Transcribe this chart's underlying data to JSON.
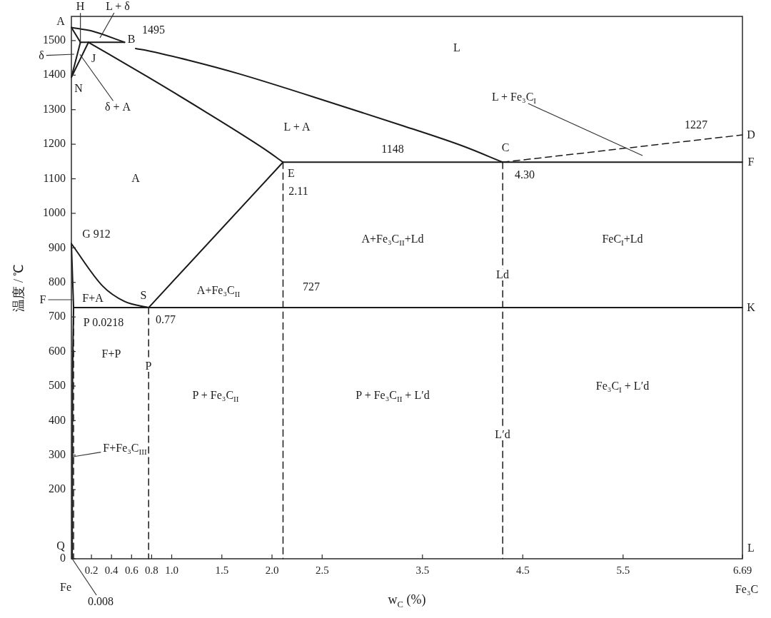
{
  "chart_data": {
    "type": "line",
    "xlabel": "w$_{C}$ (%)",
    "ylabel": "温度 / ℃",
    "xlim": [
      0,
      6.69
    ],
    "xticks": [
      0.2,
      0.4,
      0.6,
      0.8,
      {
        "value": 1,
        "label": "1.0"
      },
      1.5,
      {
        "value": 2,
        "label": "2.0"
      },
      2.5,
      3.5,
      4.5,
      5.5,
      6.69
    ],
    "ylim": [
      0,
      1570
    ],
    "yticks": [
      0,
      200,
      300,
      400,
      500,
      600,
      700,
      800,
      900,
      1000,
      1100,
      1200,
      1300,
      1400,
      1500
    ],
    "marker": "none",
    "line_style": "solid",
    "series": [
      {
        "color": "#1a1a1a",
        "x": [
          0,
          0.2,
          0.53
        ],
        "values": [
          1538,
          1528,
          1495
        ]
      },
      {
        "color": "#1a1a1a",
        "x": [
          0,
          0.09
        ],
        "values": [
          1538,
          1495
        ]
      },
      {
        "color": "#1a1a1a",
        "x": [
          0.09,
          0.53
        ],
        "values": [
          1495,
          1495
        ]
      },
      {
        "color": "#1a1a1a",
        "x": [
          0,
          0.09
        ],
        "values": [
          1394,
          1495
        ]
      },
      {
        "color": "#1a1a1a",
        "x": [
          0,
          0.17
        ],
        "values": [
          1394,
          1495
        ]
      },
      {
        "color": "#1a1a1a",
        "x": [
          0.17,
          0.76,
          1.33,
          1.93,
          2.11
        ],
        "values": [
          1495,
          1395,
          1295,
          1185,
          1148
        ]
      },
      {
        "color": "#1a1a1a",
        "x": [
          0.64,
          0.76,
          1.17,
          1.67,
          2.66,
          3.31,
          3.9,
          4.3
        ],
        "values": [
          1477,
          1471,
          1443,
          1404,
          1314,
          1253,
          1195,
          1148
        ]
      },
      {
        "color": "#1a1a1a",
        "line_style": "dashed",
        "x": [
          4.3,
          6.69
        ],
        "values": [
          1148,
          1227
        ]
      },
      {
        "color": "#1a1a1a",
        "x": [
          2.11,
          6.69
        ],
        "values": [
          1148,
          1148
        ]
      },
      {
        "color": "#1a1a1a",
        "x": [
          0,
          0.31,
          0.53,
          0.77
        ],
        "values": [
          912,
          790,
          745,
          727
        ]
      },
      {
        "color": "#1a1a1a",
        "x": [
          0.77,
          2.11
        ],
        "values": [
          727,
          1148
        ]
      },
      {
        "color": "#1a1a1a",
        "x": [
          0.0218,
          6.69
        ],
        "values": [
          727,
          727
        ]
      },
      {
        "color": "#1a1a1a",
        "x": [
          0,
          0.0218
        ],
        "values": [
          912,
          727
        ]
      },
      {
        "color": "#1a1a1a",
        "x": [
          0.008,
          0.01,
          0.015,
          0.0218
        ],
        "values": [
          0,
          400,
          600,
          727
        ]
      },
      {
        "color": "#1a1a1a",
        "line_style": "dashed",
        "x": [
          0.0218,
          0.0218
        ],
        "values": [
          727,
          0
        ]
      },
      {
        "color": "#1a1a1a",
        "line_style": "dashed",
        "x": [
          0.77,
          0.77
        ],
        "values": [
          727,
          0
        ]
      },
      {
        "color": "#1a1a1a",
        "line_style": "dashed",
        "x": [
          2.11,
          2.11
        ],
        "values": [
          1148,
          0
        ]
      },
      {
        "color": "#1a1a1a",
        "line_style": "dashed",
        "x": [
          4.3,
          4.3
        ],
        "values": [
          1148,
          0
        ]
      }
    ],
    "annotations": [
      "A",
      "L + δ",
      {
        "text": "H",
        "x": 0.09,
        "y": 1495
      },
      "1495",
      "B",
      "J",
      "N",
      "δ",
      {
        "text": "δ + A",
        "x": 0.085,
        "y": 1460
      },
      "L",
      "L + Fe₃C$_{I}$",
      "1227",
      "D",
      "C",
      "1148",
      "F",
      "L + A",
      "E",
      "2.11",
      "4.30",
      "A",
      "G 912",
      "A+Fe₃C$_{II}$+Ld",
      "FeC$_{I}$+Ld",
      "Ld",
      "F",
      "F+A",
      "S",
      "A+Fe₃C$_{II}$",
      "727",
      "K",
      "P 0.0218",
      "0.77",
      "F+P",
      "P",
      "P + Fe₃C$_{II}$",
      "P + Fe₃C$_{II}$ + L′d",
      "Fe₃C$_{I}$ + L′d",
      "L′d",
      "F+Fe₃C$_{III}$",
      "Q",
      "L",
      "Fe",
      {
        "text": "0.008",
        "x": 0.008
      },
      "Fe₃C"
    ]
  }
}
